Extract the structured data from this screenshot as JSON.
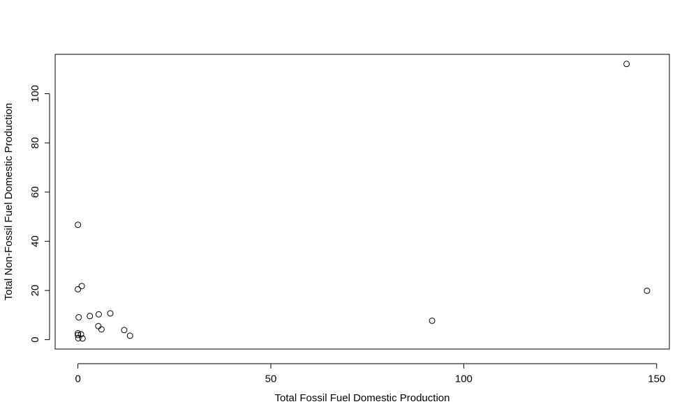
{
  "chart_data": {
    "type": "scatter",
    "title": "",
    "xlabel": "Total Fossil Fuel Domestic Production",
    "ylabel": "Total Non-Fossil Fuel Domestic Production",
    "xlim": [
      -5.9,
      153.3
    ],
    "ylim": [
      -3.8,
      116.0
    ],
    "xticks": [
      0,
      50,
      100,
      150
    ],
    "yticks": [
      0,
      20,
      40,
      60,
      80,
      100
    ],
    "grid": false,
    "legend": "none",
    "marker": "open-circle",
    "colors": {
      "marker": "#000000",
      "axis": "#000000",
      "background": "#ffffff"
    },
    "points": [
      {
        "x": 0.0,
        "y": 46.7
      },
      {
        "x": 0.0,
        "y": 20.5
      },
      {
        "x": 1.0,
        "y": 21.8
      },
      {
        "x": 0.2,
        "y": 9.1
      },
      {
        "x": 0.0,
        "y": 2.6
      },
      {
        "x": 0.0,
        "y": 1.9
      },
      {
        "x": 0.8,
        "y": 2.2
      },
      {
        "x": 0.1,
        "y": 0.6
      },
      {
        "x": 1.2,
        "y": 0.5
      },
      {
        "x": 3.1,
        "y": 9.6
      },
      {
        "x": 5.4,
        "y": 10.3
      },
      {
        "x": 8.4,
        "y": 10.7
      },
      {
        "x": 5.3,
        "y": 5.5
      },
      {
        "x": 6.1,
        "y": 4.2
      },
      {
        "x": 12.0,
        "y": 3.9
      },
      {
        "x": 13.5,
        "y": 1.6
      },
      {
        "x": 91.8,
        "y": 7.7
      },
      {
        "x": 142.2,
        "y": 112.1
      },
      {
        "x": 147.5,
        "y": 19.9
      }
    ]
  }
}
